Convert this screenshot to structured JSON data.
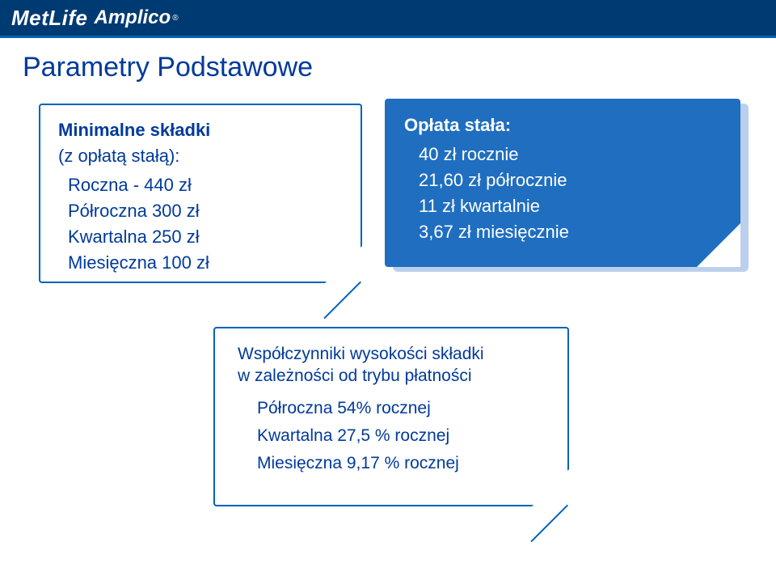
{
  "brand": {
    "main": "MetLife",
    "sub": "Amplico"
  },
  "title": "Parametry Podstawowe",
  "colors": {
    "brand_bg": "#003a72",
    "accent_blue": "#0062b8",
    "text_blue": "#003a9b",
    "box_blue": "#1f6ec0",
    "box_blue_shadow": "#bcd0ed",
    "white": "#ffffff"
  },
  "left_box": {
    "header": "Minimalne składki",
    "subheader": "(z opłatą stałą):",
    "rows": [
      "Roczna - 440 zł",
      "Półroczna 300 zł",
      "Kwartalna 250 zł",
      "Miesięczna 100 zł"
    ]
  },
  "right_box": {
    "header": "Opłata stała:",
    "rows": [
      "40 zł rocznie",
      "21,60 zł półrocznie",
      "11 zł kwartalnie",
      "3,67 zł miesięcznie"
    ]
  },
  "bottom_box": {
    "header_l1": "Współczynniki wysokości składki",
    "header_l2": "w zależności od trybu płatności",
    "rows": [
      "Półroczna 54% rocznej",
      "Kwartalna 27,5 % rocznej",
      "Miesięczna 9,17 % rocznej"
    ]
  }
}
